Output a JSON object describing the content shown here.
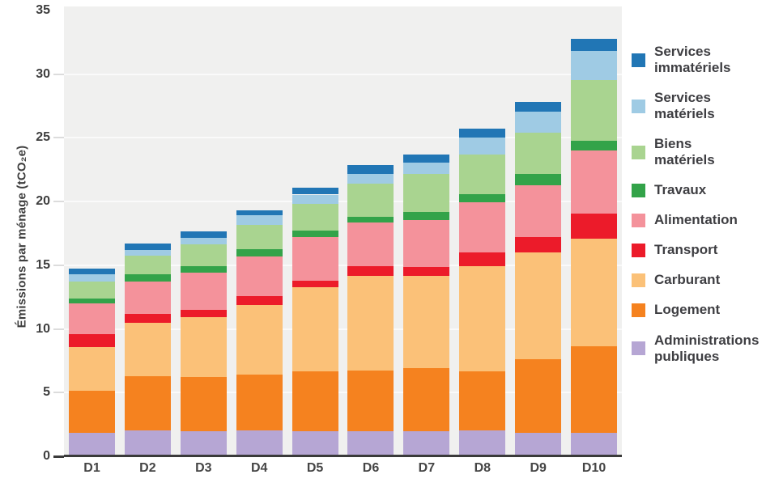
{
  "chart_data": {
    "type": "bar",
    "stacked": true,
    "title": "",
    "xlabel": "",
    "ylabel": "Émissions par ménage (tCO₂e)",
    "ylim": [
      0,
      35
    ],
    "yticks": [
      0,
      5,
      10,
      15,
      20,
      25,
      30,
      35
    ],
    "grid": true,
    "legend_position": "right",
    "categories": [
      "D1",
      "D2",
      "D3",
      "D4",
      "D5",
      "D6",
      "D7",
      "D8",
      "D9",
      "D10"
    ],
    "series": [
      {
        "name": "Administrations publiques",
        "color": "#b6a6d4",
        "values": [
          1.85,
          2.05,
          1.95,
          2.05,
          2.0,
          1.95,
          2.0,
          2.05,
          1.85,
          1.85
        ]
      },
      {
        "name": "Logement",
        "color": "#f5821f",
        "values": [
          3.3,
          4.25,
          4.25,
          4.35,
          4.65,
          4.8,
          4.95,
          4.6,
          5.8,
          6.8
        ]
      },
      {
        "name": "Carburant",
        "color": "#fbc178",
        "values": [
          3.45,
          4.2,
          4.7,
          5.5,
          6.6,
          7.4,
          7.2,
          8.3,
          8.35,
          8.45
        ]
      },
      {
        "name": "Transport",
        "color": "#ec1b2a",
        "values": [
          1.0,
          0.7,
          0.6,
          0.7,
          0.55,
          0.75,
          0.7,
          1.05,
          1.2,
          1.95
        ]
      },
      {
        "name": "Alimentation",
        "color": "#f4929b",
        "values": [
          2.4,
          2.5,
          2.9,
          3.1,
          3.4,
          3.45,
          3.7,
          3.95,
          4.1,
          4.95
        ]
      },
      {
        "name": "Travaux",
        "color": "#33a349",
        "values": [
          0.4,
          0.6,
          0.5,
          0.55,
          0.55,
          0.45,
          0.65,
          0.65,
          0.85,
          0.8
        ]
      },
      {
        "name": "Biens matériels",
        "color": "#a9d490",
        "values": [
          1.3,
          1.45,
          1.75,
          1.9,
          2.1,
          2.6,
          2.95,
          3.1,
          3.25,
          4.75
        ]
      },
      {
        "name": "Services matériels",
        "color": "#9fcbe4",
        "values": [
          0.6,
          0.45,
          0.5,
          0.75,
          0.7,
          0.8,
          0.9,
          1.3,
          1.65,
          2.3
        ]
      },
      {
        "name": "Services immatériels",
        "color": "#2176b5",
        "values": [
          0.45,
          0.5,
          0.5,
          0.4,
          0.55,
          0.65,
          0.65,
          0.75,
          0.8,
          0.9
        ]
      }
    ],
    "totals": [
      14.75,
      16.7,
      17.65,
      19.3,
      21.1,
      22.85,
      23.7,
      25.75,
      27.85,
      32.75
    ]
  },
  "legend": {
    "items": [
      {
        "name": "services-immateriels",
        "label": "Services\nimmatériels",
        "color": "#2176b5"
      },
      {
        "name": "services-materiels",
        "label": "Services\nmatériels",
        "color": "#9fcbe4"
      },
      {
        "name": "biens-materiels",
        "label": "Biens\nmatériels",
        "color": "#a9d490"
      },
      {
        "name": "travaux",
        "label": "Travaux",
        "color": "#33a349"
      },
      {
        "name": "alimentation",
        "label": "Alimentation",
        "color": "#f4929b"
      },
      {
        "name": "transport",
        "label": "Transport",
        "color": "#ec1b2a"
      },
      {
        "name": "carburant",
        "label": "Carburant",
        "color": "#fbc178"
      },
      {
        "name": "logement",
        "label": "Logement",
        "color": "#f5821f"
      },
      {
        "name": "administrations-publiques",
        "label": "Administrations\npubliques",
        "color": "#b6a6d4"
      }
    ]
  },
  "colors": {
    "plot_background": "#f0f0ef",
    "gridline": "#fafafa",
    "axis_text": "#3e3e3e",
    "baseline": "#3a3a3a"
  }
}
